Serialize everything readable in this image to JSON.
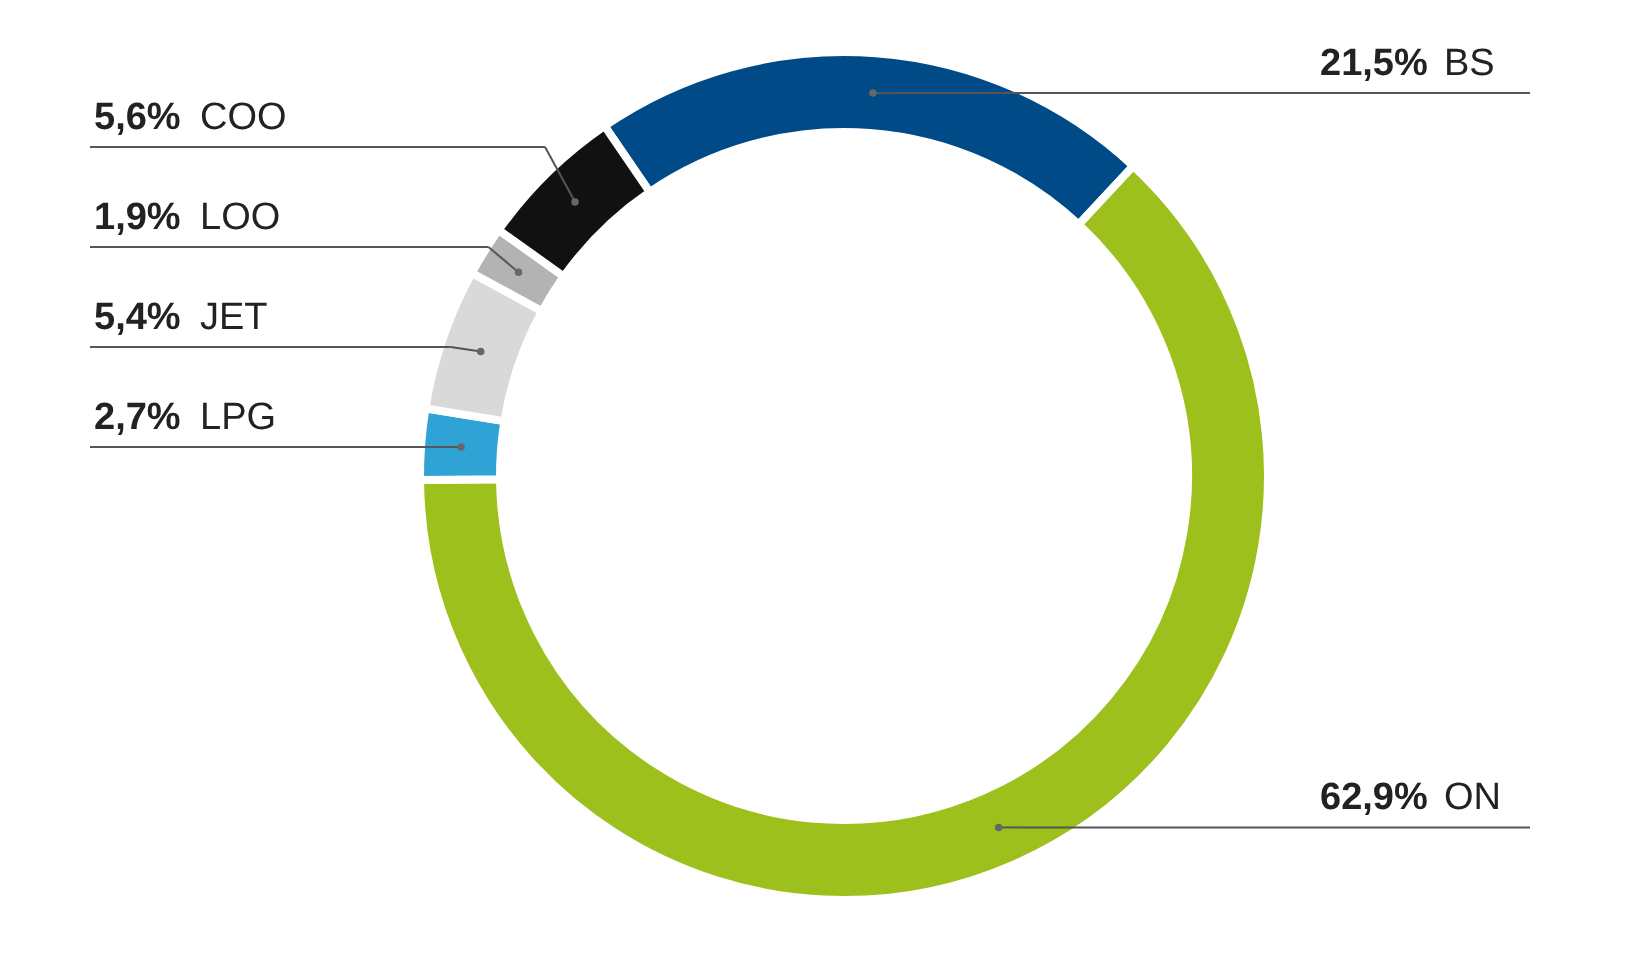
{
  "chart_data": {
    "type": "donut",
    "categories": [
      "BS",
      "ON",
      "LPG",
      "JET",
      "LOO",
      "COO"
    ],
    "values": [
      21.5,
      62.9,
      2.7,
      5.4,
      1.9,
      5.6
    ],
    "value_labels": [
      "21,5%",
      "62,9%",
      "2,7%",
      "5,4%",
      "1,9%",
      "5,6%"
    ],
    "colors": [
      "#004b87",
      "#9dc01c",
      "#2fa3d5",
      "#d9d9d9",
      "#b3b3b3",
      "#111111"
    ]
  }
}
